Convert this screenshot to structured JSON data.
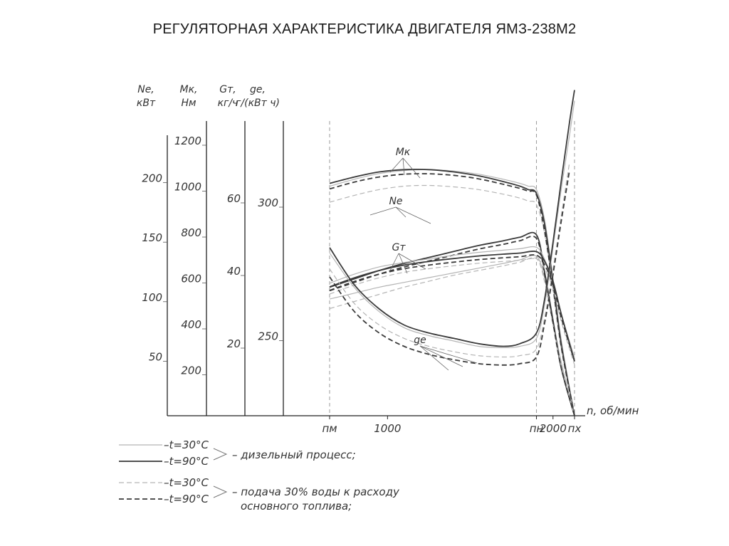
{
  "title": "РЕГУЛЯТОРНАЯ ХАРАКТЕРИСТИКА ДВИГАТЕЛЯ ЯМЗ-238М2",
  "chart_data": {
    "type": "line",
    "title": "РЕГУЛЯТОРНАЯ ХАРАКТЕРИСТИКА ДВИГАТЕЛЯ ЯМЗ-238М2",
    "xlabel": "n, об/мин",
    "x_ticks": [
      {
        "value": 650,
        "label": "пм"
      },
      {
        "value": 1000,
        "label": "1000"
      },
      {
        "value": 1900,
        "label": "пн"
      },
      {
        "value": 2000,
        "label": "2000"
      },
      {
        "value": 2130,
        "label": "пх"
      }
    ],
    "xlim": [
      650,
      2130
    ],
    "axes": [
      {
        "key": "Ne",
        "label": [
          "Ne,",
          "кВт"
        ],
        "unit": "кВт",
        "ticks": [
          "50",
          "100",
          "150",
          "200"
        ],
        "ylim": [
          0,
          250
        ]
      },
      {
        "key": "Mk",
        "label": [
          "Мк,",
          "Нм"
        ],
        "unit": "Нм",
        "ticks": [
          "200",
          "400",
          "600",
          "800",
          "1000",
          "1200"
        ],
        "ylim": [
          0,
          1200
        ]
      },
      {
        "key": "Gm",
        "label": [
          "Gт,",
          "кг/ч"
        ],
        "unit": "кг/ч",
        "ticks": [
          "20",
          "40",
          "60"
        ],
        "ylim": [
          0,
          80
        ]
      },
      {
        "key": "ge",
        "label": [
          "ge,",
          "г/(кВт ч)"
        ],
        "unit": "г/(кВт ч)",
        "ticks": [
          "250",
          "300"
        ],
        "ylim": [
          220,
          340
        ]
      }
    ],
    "curve_labels": [
      "Мк",
      "Ne",
      "Gт",
      "ge"
    ],
    "series": [
      {
        "name": "Мк",
        "axis": "Mk",
        "variants": [
          {
            "style": "thin-solid",
            "x": [
              650,
              800,
              950,
              1100,
              1250,
              1400,
              1550,
              1700,
              1800,
              1850,
              1900,
              1950,
              2000,
              2050,
              2130
            ],
            "y": [
              1000,
              1030,
              1055,
              1068,
              1072,
              1066,
              1052,
              1030,
              1012,
              1000,
              985,
              850,
              600,
              330,
              0
            ]
          },
          {
            "style": "thick-solid",
            "x": [
              650,
              800,
              950,
              1100,
              1250,
              1400,
              1550,
              1700,
              1800,
              1850,
              1900,
              1950,
              2000,
              2050,
              2130
            ],
            "y": [
              1012,
              1040,
              1062,
              1072,
              1072,
              1062,
              1045,
              1020,
              1000,
              985,
              968,
              830,
              580,
              310,
              0
            ]
          },
          {
            "style": "thin-dashed",
            "x": [
              650,
              800,
              950,
              1100,
              1250,
              1400,
              1550,
              1700,
              1800,
              1850,
              1900,
              1950,
              2000,
              2050,
              2130
            ],
            "y": [
              930,
              960,
              985,
              1000,
              1003,
              997,
              985,
              965,
              948,
              935,
              920,
              790,
              550,
              290,
              0
            ]
          },
          {
            "style": "thick-dashed",
            "x": [
              650,
              800,
              950,
              1100,
              1250,
              1400,
              1550,
              1700,
              1800,
              1850,
              1900,
              1950,
              2000,
              2050,
              2130
            ],
            "y": [
              988,
              1018,
              1040,
              1052,
              1054,
              1047,
              1032,
              1008,
              990,
              978,
              962,
              800,
              560,
              300,
              0
            ]
          }
        ]
      },
      {
        "name": "Ne",
        "axis": "Ne",
        "variants": [
          {
            "style": "thin-solid",
            "x": [
              650,
              800,
              950,
              1100,
              1250,
              1400,
              1550,
              1700,
              1800,
              1900,
              1950,
              2000,
              2050,
              2130
            ],
            "y": [
              98,
              103,
              108,
              112,
              116,
              120,
              124,
              128,
              131,
              134,
              115,
              80,
              45,
              0
            ]
          },
          {
            "style": "thick-solid",
            "x": [
              650,
              800,
              950,
              1100,
              1250,
              1400,
              1550,
              1700,
              1800,
              1900,
              1950,
              2000,
              2050,
              2130
            ],
            "y": [
              108,
              115,
              122,
              128,
              133,
              138,
              143,
              147,
              150,
              152,
              120,
              80,
              40,
              0
            ]
          },
          {
            "style": "thin-dashed",
            "x": [
              650,
              800,
              950,
              1100,
              1250,
              1400,
              1550,
              1700,
              1800,
              1900,
              1950,
              2000,
              2050,
              2130
            ],
            "y": [
              90,
              96,
              102,
              108,
              113,
              118,
              122,
              126,
              129,
              132,
              112,
              76,
              42,
              0
            ]
          },
          {
            "style": "thick-dashed",
            "x": [
              650,
              800,
              950,
              1100,
              1250,
              1400,
              1550,
              1700,
              1800,
              1900,
              1950,
              2000,
              2050,
              2130
            ],
            "y": [
              105,
              112,
              119,
              125,
              130,
              135,
              140,
              144,
              147,
              149,
              118,
              78,
              40,
              0
            ]
          }
        ]
      },
      {
        "name": "Gт",
        "axis": "Gm",
        "variants": [
          {
            "style": "thin-solid",
            "x": [
              650,
              800,
              950,
              1100,
              1250,
              1400,
              1550,
              1700,
              1800,
              1900,
              1950,
              2000,
              2050,
              2130
            ],
            "y": [
              36.5,
              39,
              41,
              42.2,
              43.2,
              44.2,
              45,
              45.6,
              46,
              46.4,
              43,
              37,
              28,
              16
            ]
          },
          {
            "style": "thick-solid",
            "x": [
              650,
              800,
              950,
              1100,
              1250,
              1400,
              1550,
              1700,
              1800,
              1900,
              1950,
              2000,
              2050,
              2130
            ],
            "y": [
              35.5,
              38,
              40,
              41.5,
              42.5,
              43.3,
              44,
              44.5,
              44.8,
              45.2,
              42.5,
              37,
              28,
              15
            ]
          },
          {
            "style": "thin-dashed",
            "x": [
              650,
              800,
              950,
              1100,
              1250,
              1400,
              1550,
              1700,
              1800,
              1900,
              1950,
              2000,
              2050,
              2130
            ],
            "y": [
              33.5,
              36,
              38,
              39.5,
              40.5,
              41.3,
              42,
              42.5,
              42.8,
              43.2,
              40.5,
              35,
              26,
              14
            ]
          },
          {
            "style": "thick-dashed",
            "x": [
              650,
              800,
              950,
              1100,
              1250,
              1400,
              1550,
              1700,
              1800,
              1900,
              1950,
              2000,
              2050,
              2130
            ],
            "y": [
              34.5,
              37,
              39,
              40.5,
              41.5,
              42.3,
              43,
              43.5,
              43.8,
              44.2,
              41.5,
              36,
              27,
              15
            ]
          }
        ]
      },
      {
        "name": "ge",
        "axis": "ge",
        "variants": [
          {
            "style": "thin-solid",
            "x": [
              650,
              800,
              950,
              1100,
              1250,
              1400,
              1550,
              1700,
              1800,
              1900,
              1950,
              2000,
              2050,
              2100,
              2130
            ],
            "y": [
              281,
              268,
              259,
              253,
              250,
              248,
              246,
              245.5,
              246,
              249,
              262,
              283,
              305,
              325,
              338
            ]
          },
          {
            "style": "thick-solid",
            "x": [
              650,
              800,
              950,
              1100,
              1250,
              1400,
              1550,
              1700,
              1800,
              1900,
              1950,
              2000,
              2050,
              2100,
              2130
            ],
            "y": [
              283,
              269,
              260,
              254,
              251,
              249,
              247,
              246,
              247,
              251,
              264,
              285,
              308,
              330,
              342
            ]
          },
          {
            "style": "thin-dashed",
            "x": [
              650,
              800,
              950,
              1100,
              1250,
              1400,
              1550,
              1700,
              1800,
              1900,
              1950,
              2000,
              2050,
              2100
            ],
            "y": [
              275,
              262,
              254,
              249,
              246,
              244,
              242.5,
              242,
              242.5,
              245,
              257,
              275,
              295,
              315
            ]
          },
          {
            "style": "thick-dashed",
            "x": [
              650,
              800,
              950,
              1100,
              1250,
              1400,
              1550,
              1700,
              1800,
              1900,
              1950,
              2000,
              2050,
              2100
            ],
            "y": [
              272,
              259,
              251,
              246,
              243,
              241,
              239.5,
              239,
              239.5,
              242,
              255,
              273,
              293,
              312
            ]
          }
        ]
      }
    ],
    "legend": [
      {
        "text": "–t=30°C",
        "style": "thin-solid"
      },
      {
        "text": "–t=90°C",
        "style": "thick-solid"
      },
      {
        "text": "–t=30°C",
        "style": "thin-dashed"
      },
      {
        "text": "–t=90°C",
        "style": "thick-dashed"
      }
    ],
    "legend_groups": [
      {
        "lines": [
          "– дизельный процесс;"
        ]
      },
      {
        "lines": [
          "– подача 30% воды к расходу",
          "основного топлива;"
        ]
      }
    ],
    "colors": {
      "thin": "#b4b4b4",
      "thick": "#3a3a3a",
      "axis": "#222222"
    }
  }
}
